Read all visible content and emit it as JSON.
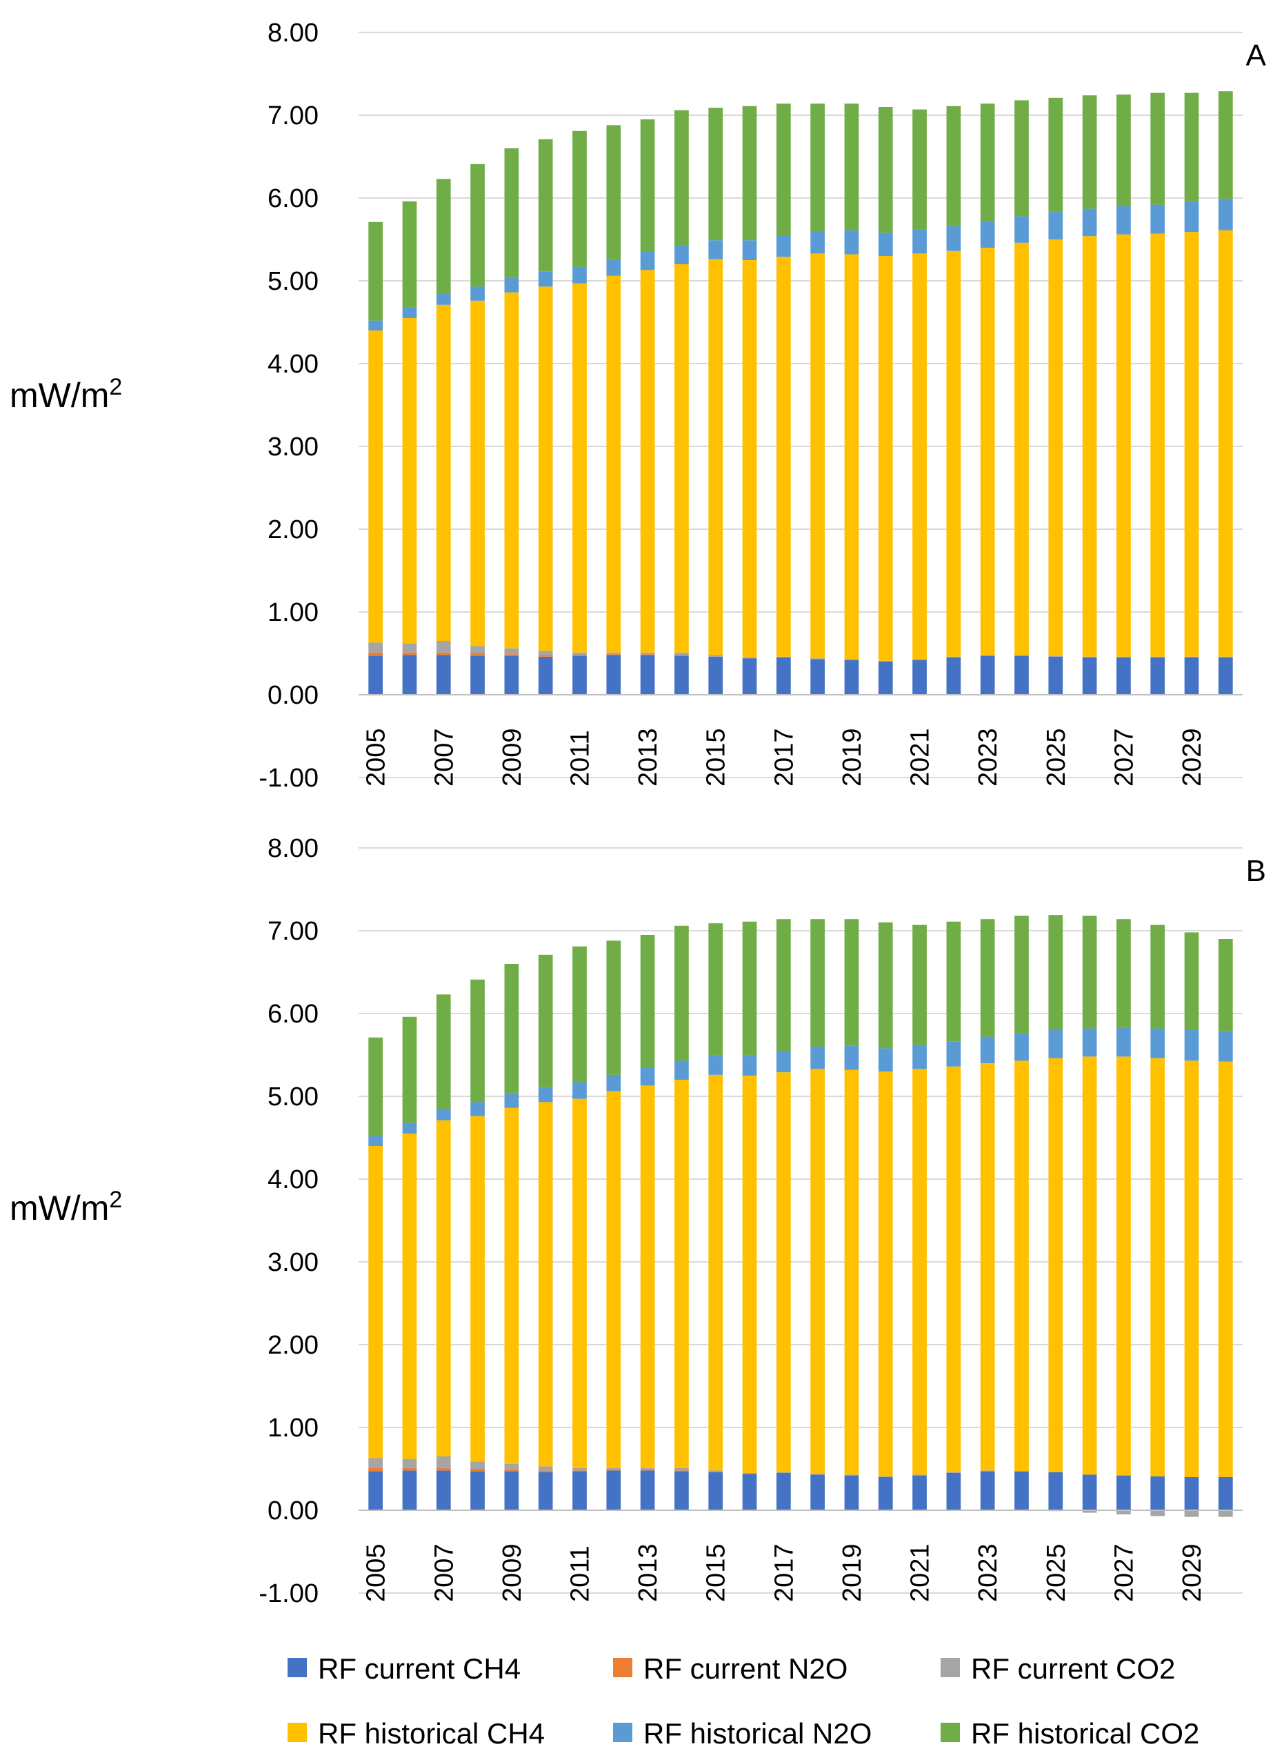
{
  "chart_data": [
    {
      "type": "bar",
      "stacked": true,
      "panel_label": "A",
      "ylabel": "mW/m",
      "ylabel_superscript": "2",
      "ylim": [
        -1.0,
        8.0
      ],
      "yticks": [
        "8.00",
        "7.00",
        "6.00",
        "5.00",
        "4.00",
        "3.00",
        "2.00",
        "1.00",
        "0.00",
        "-1.00"
      ],
      "ytick_values": [
        8,
        7,
        6,
        5,
        4,
        3,
        2,
        1,
        0,
        -1
      ],
      "grid": true,
      "categories": [
        2005,
        2006,
        2007,
        2008,
        2009,
        2010,
        2011,
        2012,
        2013,
        2014,
        2015,
        2016,
        2017,
        2018,
        2019,
        2020,
        2021,
        2022,
        2023,
        2024,
        2025,
        2026,
        2027,
        2028,
        2029,
        2030
      ],
      "xtick_labels": [
        "2005",
        "",
        "2007",
        "",
        "2009",
        "",
        "2011",
        "",
        "2013",
        "",
        "2015",
        "",
        "2017",
        "",
        "2019",
        "",
        "2021",
        "",
        "2023",
        "",
        "2025",
        "",
        "2027",
        "",
        "2029",
        ""
      ],
      "series": [
        {
          "name": "RF current CH4",
          "values": [
            0.47,
            0.48,
            0.48,
            0.47,
            0.47,
            0.46,
            0.47,
            0.48,
            0.48,
            0.47,
            0.46,
            0.44,
            0.45,
            0.43,
            0.42,
            0.4,
            0.42,
            0.45,
            0.47,
            0.47,
            0.46,
            0.45,
            0.45,
            0.45,
            0.45,
            0.45
          ]
        },
        {
          "name": "RF current N2O",
          "values": [
            0.04,
            0.03,
            0.03,
            0.03,
            0.02,
            0.02,
            0.01,
            0.01,
            0.01,
            0.01,
            0.0,
            0.0,
            0.0,
            0.0,
            0.0,
            0.0,
            0.0,
            0.0,
            0.0,
            0.0,
            0.0,
            0.0,
            0.0,
            0.0,
            0.0,
            0.0
          ]
        },
        {
          "name": "RF current CO2",
          "values": [
            0.12,
            0.11,
            0.14,
            0.09,
            0.07,
            0.05,
            0.03,
            0.02,
            0.02,
            0.03,
            0.02,
            0.01,
            0.01,
            0.01,
            0.01,
            0.01,
            0.01,
            0.01,
            0.01,
            0.01,
            0.01,
            0.01,
            0.01,
            0.01,
            0.01,
            0.01
          ]
        },
        {
          "name": "RF historical CH4",
          "values": [
            3.77,
            3.93,
            4.06,
            4.17,
            4.3,
            4.4,
            4.46,
            4.55,
            4.62,
            4.69,
            4.78,
            4.8,
            4.83,
            4.89,
            4.89,
            4.89,
            4.9,
            4.9,
            4.92,
            4.98,
            5.03,
            5.08,
            5.1,
            5.11,
            5.13,
            5.15
          ]
        },
        {
          "name": "RF historical N2O",
          "values": [
            0.12,
            0.13,
            0.14,
            0.17,
            0.18,
            0.18,
            0.2,
            0.2,
            0.22,
            0.23,
            0.23,
            0.24,
            0.26,
            0.27,
            0.29,
            0.28,
            0.29,
            0.3,
            0.32,
            0.32,
            0.33,
            0.33,
            0.34,
            0.35,
            0.37,
            0.38
          ]
        },
        {
          "name": "RF historical CO2",
          "values": [
            1.19,
            1.28,
            1.38,
            1.48,
            1.56,
            1.6,
            1.64,
            1.62,
            1.6,
            1.63,
            1.6,
            1.62,
            1.59,
            1.54,
            1.53,
            1.52,
            1.45,
            1.45,
            1.42,
            1.4,
            1.38,
            1.37,
            1.35,
            1.35,
            1.31,
            1.3
          ]
        }
      ]
    },
    {
      "type": "bar",
      "stacked": true,
      "panel_label": "B",
      "ylabel": "mW/m",
      "ylabel_superscript": "2",
      "ylim": [
        -1.0,
        8.0
      ],
      "yticks": [
        "8.00",
        "7.00",
        "6.00",
        "5.00",
        "4.00",
        "3.00",
        "2.00",
        "1.00",
        "0.00",
        "-1.00"
      ],
      "ytick_values": [
        8,
        7,
        6,
        5,
        4,
        3,
        2,
        1,
        0,
        -1
      ],
      "grid": true,
      "categories": [
        2005,
        2006,
        2007,
        2008,
        2009,
        2010,
        2011,
        2012,
        2013,
        2014,
        2015,
        2016,
        2017,
        2018,
        2019,
        2020,
        2021,
        2022,
        2023,
        2024,
        2025,
        2026,
        2027,
        2028,
        2029,
        2030
      ],
      "xtick_labels": [
        "2005",
        "",
        "2007",
        "",
        "2009",
        "",
        "2011",
        "",
        "2013",
        "",
        "2015",
        "",
        "2017",
        "",
        "2019",
        "",
        "2021",
        "",
        "2023",
        "",
        "2025",
        "",
        "2027",
        "",
        "2029",
        ""
      ],
      "series": [
        {
          "name": "RF current CH4",
          "values": [
            0.47,
            0.48,
            0.48,
            0.47,
            0.47,
            0.46,
            0.47,
            0.48,
            0.48,
            0.47,
            0.46,
            0.44,
            0.45,
            0.43,
            0.42,
            0.4,
            0.42,
            0.45,
            0.47,
            0.47,
            0.46,
            0.43,
            0.42,
            0.41,
            0.4,
            0.4
          ]
        },
        {
          "name": "RF current N2O",
          "values": [
            0.04,
            0.03,
            0.03,
            0.03,
            0.02,
            0.02,
            0.01,
            0.01,
            0.01,
            0.01,
            0.0,
            0.0,
            0.0,
            0.0,
            0.0,
            0.0,
            0.0,
            0.0,
            0.0,
            0.0,
            0.0,
            0.0,
            0.0,
            0.0,
            0.0,
            0.0
          ]
        },
        {
          "name": "RF current CO2",
          "values": [
            0.12,
            0.11,
            0.14,
            0.09,
            0.07,
            0.05,
            0.03,
            0.02,
            0.02,
            0.03,
            0.02,
            0.01,
            0.01,
            0.01,
            0.01,
            0.01,
            0.01,
            0.01,
            0.01,
            0.0,
            -0.01,
            -0.03,
            -0.05,
            -0.07,
            -0.08,
            -0.08
          ]
        },
        {
          "name": "RF historical CH4",
          "values": [
            3.77,
            3.93,
            4.06,
            4.17,
            4.3,
            4.4,
            4.46,
            4.55,
            4.62,
            4.69,
            4.78,
            4.8,
            4.83,
            4.89,
            4.89,
            4.89,
            4.9,
            4.9,
            4.92,
            4.96,
            5.0,
            5.05,
            5.06,
            5.05,
            5.03,
            5.02
          ]
        },
        {
          "name": "RF historical N2O",
          "values": [
            0.12,
            0.13,
            0.14,
            0.17,
            0.18,
            0.18,
            0.2,
            0.2,
            0.22,
            0.23,
            0.23,
            0.24,
            0.26,
            0.27,
            0.29,
            0.28,
            0.29,
            0.3,
            0.32,
            0.33,
            0.34,
            0.34,
            0.35,
            0.36,
            0.37,
            0.37
          ]
        },
        {
          "name": "RF historical CO2",
          "values": [
            1.19,
            1.28,
            1.38,
            1.48,
            1.56,
            1.6,
            1.64,
            1.62,
            1.6,
            1.63,
            1.6,
            1.62,
            1.59,
            1.54,
            1.53,
            1.52,
            1.45,
            1.45,
            1.42,
            1.42,
            1.39,
            1.36,
            1.31,
            1.25,
            1.18,
            1.11
          ]
        }
      ]
    }
  ],
  "legend": {
    "position": "bottom",
    "items": [
      {
        "name": "RF current CH4",
        "color": "#4472C4"
      },
      {
        "name": "RF current N2O",
        "color": "#ED7D31"
      },
      {
        "name": "RF current CO2",
        "color": "#A5A5A5"
      },
      {
        "name": "RF historical CH4",
        "color": "#FFC000"
      },
      {
        "name": "RF historical N2O",
        "color": "#5B9BD5"
      },
      {
        "name": "RF historical CO2",
        "color": "#70AD47"
      }
    ]
  }
}
